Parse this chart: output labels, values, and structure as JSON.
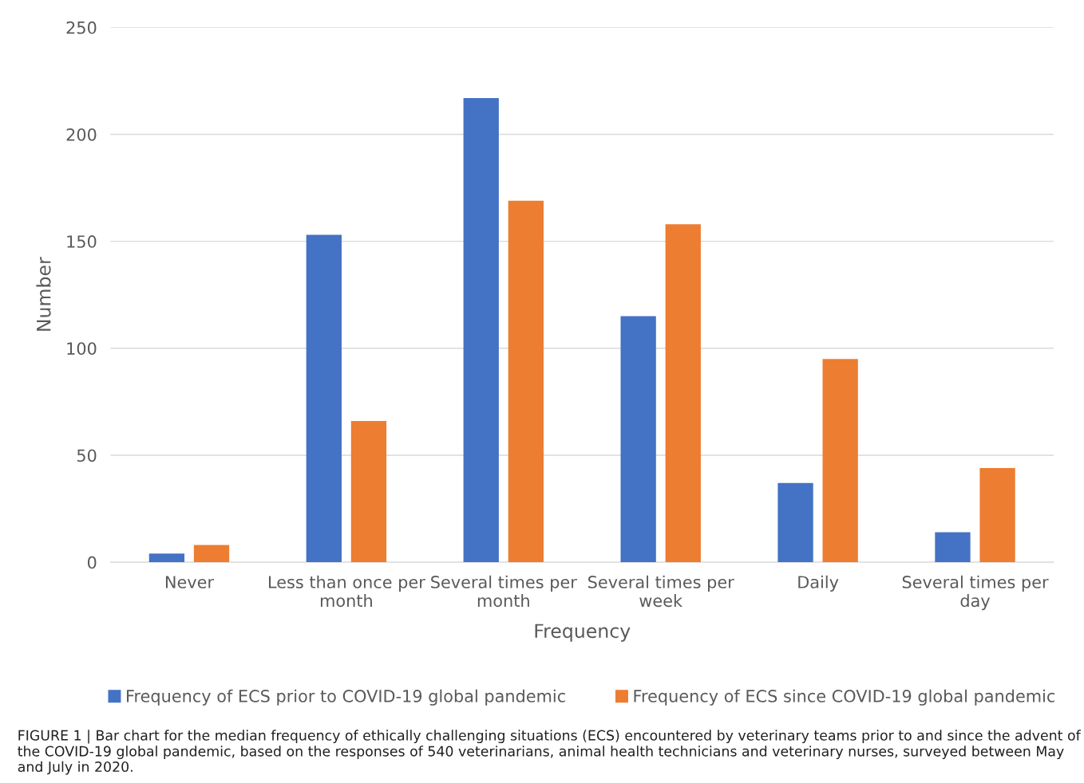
{
  "chart_data": {
    "type": "bar",
    "xlabel": "Frequency",
    "ylabel": "Number",
    "categories": [
      "Never",
      "Less than once per\nmonth",
      "Several times per\nmonth",
      "Several times per\nweek",
      "Daily",
      "Several times per\nday"
    ],
    "series": [
      {
        "name": "Frequency of ECS prior to COVID-19 global pandemic",
        "color": "#4472c4",
        "values": [
          4,
          153,
          217,
          115,
          37,
          14
        ]
      },
      {
        "name": "Frequency of ECS since COVID-19 global pandemic",
        "color": "#ed7d31",
        "values": [
          8,
          66,
          169,
          158,
          95,
          44
        ]
      }
    ],
    "ylim": [
      0,
      250
    ],
    "yticks": [
      0,
      50,
      100,
      150,
      200,
      250
    ],
    "grid": "y",
    "legend": "bottom",
    "annotations": [
      "FIGURE 1 | Bar chart for the median frequency of ethically challenging situations (ECS) encountered by veterinary teams prior to and since the advent of the COVID-19 global pandemic, based on the responses of 540 veterinarians, animal health technicians and veterinary nurses, surveyed between May and July in 2020."
    ]
  }
}
